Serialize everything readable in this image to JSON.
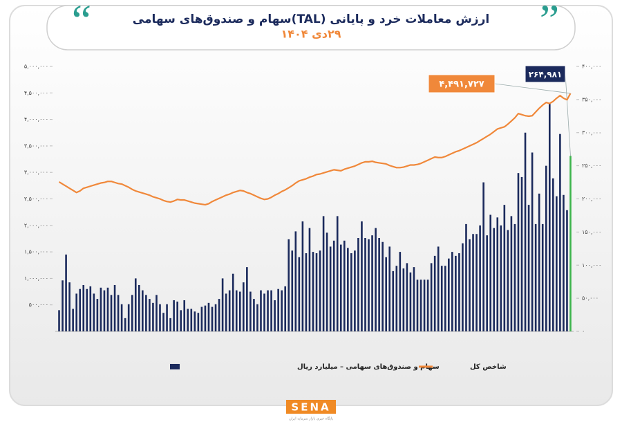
{
  "chart_data": {
    "type": "bar",
    "title": "ارزش معاملات خرد و پایانی (TAL)سهام و صندوق‌های سهامی",
    "subtitle": "۲۹دی ۱۴۰۴",
    "categories": [
      null,
      null,
      null,
      null,
      null,
      null,
      null,
      null,
      null,
      null,
      null,
      null,
      null,
      null,
      null,
      null,
      null,
      null,
      null,
      null,
      null,
      null,
      null,
      null,
      null,
      null,
      null,
      null,
      null,
      null,
      null,
      null,
      null,
      null,
      null,
      null,
      null,
      null,
      null,
      null,
      null,
      null,
      null,
      null,
      null,
      null,
      null,
      null,
      null,
      null,
      null,
      null,
      null,
      null,
      null,
      null,
      null,
      null,
      null,
      null,
      null,
      null,
      null,
      null,
      null,
      null,
      null,
      null,
      null,
      null,
      null,
      null,
      null,
      null,
      null,
      null,
      null,
      null,
      null,
      null,
      null,
      null,
      null,
      null,
      null,
      null,
      null,
      null,
      null,
      null,
      null,
      null,
      null,
      null,
      null,
      null,
      null,
      null,
      null,
      null,
      null,
      null,
      null,
      null,
      null,
      null,
      null,
      null,
      null,
      null,
      null,
      null,
      null,
      null,
      null,
      null,
      null,
      null,
      null,
      null,
      null,
      null,
      null,
      null,
      null,
      null,
      null,
      null,
      null,
      null,
      null,
      null,
      null,
      null,
      null,
      null,
      null,
      null,
      null,
      null,
      null,
      null,
      null,
      null,
      null,
      null,
      null,
      null
    ],
    "series": [
      {
        "name": "سهام و صندوق‌های سهامی – میلیارد ریال",
        "type": "bar",
        "axis": "y2",
        "color": "#1b2a5c",
        "last_color": "#3cb44b",
        "values": [
          32000,
          77000,
          116000,
          74000,
          34000,
          57000,
          64000,
          70000,
          64000,
          68000,
          57000,
          49000,
          66000,
          62000,
          66000,
          55000,
          70000,
          55000,
          41000,
          20000,
          41000,
          55000,
          80000,
          70000,
          62000,
          55000,
          49000,
          43000,
          55000,
          41000,
          28000,
          41000,
          20000,
          47000,
          45000,
          32000,
          47000,
          34000,
          34000,
          30000,
          28000,
          37000,
          39000,
          43000,
          37000,
          41000,
          49000,
          80000,
          57000,
          62000,
          87000,
          62000,
          60000,
          74000,
          97000,
          60000,
          49000,
          41000,
          62000,
          57000,
          62000,
          62000,
          47000,
          64000,
          62000,
          68000,
          139000,
          122000,
          151000,
          112000,
          166000,
          118000,
          156000,
          120000,
          118000,
          122000,
          174000,
          149000,
          128000,
          137000,
          174000,
          131000,
          137000,
          126000,
          118000,
          122000,
          141000,
          166000,
          141000,
          139000,
          145000,
          156000,
          141000,
          135000,
          112000,
          128000,
          91000,
          99000,
          120000,
          95000,
          103000,
          89000,
          97000,
          78000,
          78000,
          78000,
          78000,
          103000,
          114000,
          128000,
          99000,
          99000,
          110000,
          120000,
          114000,
          118000,
          133000,
          162000,
          139000,
          147000,
          147000,
          160000,
          225000,
          145000,
          176000,
          156000,
          172000,
          160000,
          191000,
          153000,
          174000,
          162000,
          239000,
          233000,
          300000,
          191000,
          270000,
          162000,
          208000,
          162000,
          250000,
          344000,
          231000,
          204000,
          298000,
          206000,
          183000,
          264981
        ],
        "value_labels": [
          null,
          null,
          null,
          null,
          null,
          null,
          null,
          null,
          null,
          null,
          null,
          null,
          null,
          null,
          null,
          null,
          null,
          null,
          null,
          null,
          null,
          null,
          null,
          null,
          null,
          null,
          null,
          null,
          null,
          null,
          null,
          null,
          null,
          null,
          null,
          null,
          null,
          null,
          null,
          null,
          null,
          null,
          null,
          null,
          null,
          null,
          null,
          null,
          null,
          null,
          null,
          null,
          null,
          null,
          null,
          null,
          null,
          null,
          null,
          null,
          null,
          null,
          null,
          null,
          null,
          null,
          null,
          null,
          null,
          null,
          null,
          null,
          null,
          null,
          null,
          null,
          null,
          null,
          null,
          null,
          null,
          null,
          null,
          null,
          null,
          null,
          null,
          null,
          null,
          null,
          null,
          null,
          null,
          null,
          null,
          null,
          null,
          null,
          null,
          null,
          null,
          null,
          null,
          null,
          null,
          null,
          null,
          null,
          null,
          null,
          null,
          null,
          null,
          null,
          null,
          null,
          null,
          null,
          null,
          null,
          null,
          null,
          null,
          null,
          null,
          null,
          null,
          null,
          null,
          null,
          null,
          null,
          null,
          null,
          null,
          null,
          null,
          null,
          null,
          null,
          null,
          null,
          null,
          null,
          null,
          null,
          null,
          "۲۶۴,۹۸۱"
        ]
      },
      {
        "name": "شاخص کل",
        "type": "line",
        "axis": "y",
        "color": "#f0883a",
        "values": [
          2820000,
          2780000,
          2740000,
          2700000,
          2660000,
          2620000,
          2650000,
          2700000,
          2720000,
          2740000,
          2760000,
          2780000,
          2800000,
          2810000,
          2830000,
          2830000,
          2810000,
          2790000,
          2780000,
          2750000,
          2720000,
          2680000,
          2650000,
          2630000,
          2610000,
          2590000,
          2570000,
          2540000,
          2520000,
          2500000,
          2470000,
          2450000,
          2440000,
          2460000,
          2490000,
          2480000,
          2480000,
          2460000,
          2440000,
          2420000,
          2410000,
          2400000,
          2390000,
          2410000,
          2450000,
          2480000,
          2510000,
          2540000,
          2570000,
          2590000,
          2620000,
          2640000,
          2660000,
          2650000,
          2620000,
          2600000,
          2570000,
          2540000,
          2510000,
          2490000,
          2500000,
          2530000,
          2570000,
          2600000,
          2640000,
          2670000,
          2710000,
          2750000,
          2800000,
          2840000,
          2860000,
          2880000,
          2910000,
          2930000,
          2960000,
          2970000,
          2990000,
          3010000,
          3030000,
          3050000,
          3040000,
          3030000,
          3060000,
          3080000,
          3100000,
          3120000,
          3150000,
          3180000,
          3200000,
          3200000,
          3210000,
          3190000,
          3180000,
          3170000,
          3160000,
          3130000,
          3110000,
          3090000,
          3090000,
          3100000,
          3120000,
          3140000,
          3140000,
          3150000,
          3170000,
          3200000,
          3230000,
          3260000,
          3290000,
          3280000,
          3280000,
          3300000,
          3330000,
          3360000,
          3390000,
          3410000,
          3440000,
          3470000,
          3500000,
          3530000,
          3560000,
          3600000,
          3640000,
          3680000,
          3720000,
          3770000,
          3820000,
          3840000,
          3860000,
          3910000,
          3970000,
          4030000,
          4110000,
          4090000,
          4070000,
          4060000,
          4070000,
          4140000,
          4210000,
          4270000,
          4320000,
          4300000,
          4340000,
          4400000,
          4450000,
          4400000,
          4370000,
          4491727
        ],
        "value_labels": [
          null,
          null,
          null,
          null,
          null,
          null,
          null,
          null,
          null,
          null,
          null,
          null,
          null,
          null,
          null,
          null,
          null,
          null,
          null,
          null,
          null,
          null,
          null,
          null,
          null,
          null,
          null,
          null,
          null,
          null,
          null,
          null,
          null,
          null,
          null,
          null,
          null,
          null,
          null,
          null,
          null,
          null,
          null,
          null,
          null,
          null,
          null,
          null,
          null,
          null,
          null,
          null,
          null,
          null,
          null,
          null,
          null,
          null,
          null,
          null,
          null,
          null,
          null,
          null,
          null,
          null,
          null,
          null,
          null,
          null,
          null,
          null,
          null,
          null,
          null,
          null,
          null,
          null,
          null,
          null,
          null,
          null,
          null,
          null,
          null,
          null,
          null,
          null,
          null,
          null,
          null,
          null,
          null,
          null,
          null,
          null,
          null,
          null,
          null,
          null,
          null,
          null,
          null,
          null,
          null,
          null,
          null,
          null,
          null,
          null,
          null,
          null,
          null,
          null,
          null,
          null,
          null,
          null,
          null,
          null,
          null,
          null,
          null,
          null,
          null,
          null,
          null,
          null,
          null,
          null,
          null,
          null,
          null,
          null,
          null,
          null,
          null,
          null,
          null,
          null,
          null,
          null,
          null,
          null,
          null,
          null,
          null,
          "۴,۴۹۱,۷۲۷"
        ]
      }
    ],
    "ylim": [
      0,
      5000000
    ],
    "yticks": [
      {
        "value": 500000,
        "label": "۵۰۰,۰۰۰"
      },
      {
        "value": 1000000,
        "label": "۱,۰۰۰,۰۰۰"
      },
      {
        "value": 1500000,
        "label": "۱,۵۰۰,۰۰۰"
      },
      {
        "value": 2000000,
        "label": "۲,۰۰۰,۰۰۰"
      },
      {
        "value": 2500000,
        "label": "۲,۵۰۰,۰۰۰"
      },
      {
        "value": 3000000,
        "label": "۳,۰۰۰,۰۰۰"
      },
      {
        "value": 3500000,
        "label": "۳,۵۰۰,۰۰۰"
      },
      {
        "value": 4000000,
        "label": "۴,۰۰۰,۰۰۰"
      },
      {
        "value": 4500000,
        "label": "۴,۵۰۰,۰۰۰"
      },
      {
        "value": 5000000,
        "label": "۵,۰۰۰,۰۰۰"
      }
    ],
    "y2lim": [
      0,
      400000
    ],
    "y2ticks": [
      {
        "value": 0,
        "label": "۰"
      },
      {
        "value": 50000,
        "label": "۵۰,۰۰۰"
      },
      {
        "value": 100000,
        "label": "۱۰۰,۰۰۰"
      },
      {
        "value": 150000,
        "label": "۱۵۰,۰۰۰"
      },
      {
        "value": 200000,
        "label": "۲۰۰,۰۰۰"
      },
      {
        "value": 250000,
        "label": "۲۵۰,۰۰۰"
      },
      {
        "value": 300000,
        "label": "۳۰۰,۰۰۰"
      },
      {
        "value": 350000,
        "label": "۳۵۰,۰۰۰"
      },
      {
        "value": 400000,
        "label": "۴۰۰,۰۰۰"
      }
    ],
    "grid": false
  },
  "logo": {
    "name": "SENA",
    "tagline": "پایگاه خبری بازار سرمایه ایران"
  }
}
